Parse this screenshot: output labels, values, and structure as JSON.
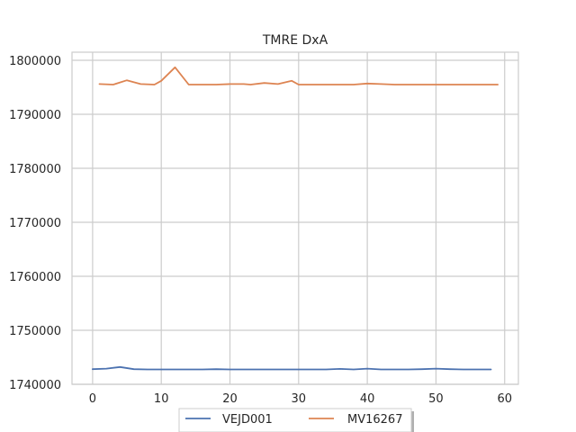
{
  "chart_data": {
    "type": "line",
    "title": "TMRE DxA",
    "xlabel": "",
    "ylabel": "",
    "xlim": [
      -3,
      62
    ],
    "ylim": [
      1740000,
      1801500
    ],
    "xticks": [
      "0",
      "10",
      "20",
      "30",
      "40",
      "50",
      "60"
    ],
    "yticks": [
      "1740000",
      "1750000",
      "1760000",
      "1770000",
      "1780000",
      "1790000",
      "1800000"
    ],
    "grid": true,
    "legend_position": "bottom-center",
    "series": [
      {
        "name": "VEJD001",
        "color": "#4c72b0",
        "x": [
          0,
          2,
          4,
          6,
          8,
          10,
          12,
          14,
          16,
          18,
          20,
          22,
          24,
          26,
          28,
          30,
          32,
          34,
          36,
          38,
          40,
          42,
          44,
          46,
          48,
          50,
          52,
          54,
          56,
          58
        ],
        "y": [
          1742800,
          1742900,
          1743200,
          1742800,
          1742750,
          1742750,
          1742750,
          1742750,
          1742750,
          1742800,
          1742750,
          1742750,
          1742750,
          1742750,
          1742750,
          1742750,
          1742750,
          1742750,
          1742850,
          1742750,
          1742900,
          1742750,
          1742750,
          1742750,
          1742800,
          1742900,
          1742800,
          1742750,
          1742750,
          1742750
        ]
      },
      {
        "name": "MV16267",
        "color": "#dd8452",
        "x": [
          1,
          3,
          5,
          7,
          9,
          10,
          12,
          14,
          16,
          18,
          20,
          22,
          23,
          25,
          27,
          29,
          30,
          32,
          34,
          36,
          38,
          40,
          42,
          44,
          46,
          48,
          50,
          52,
          54,
          56,
          59
        ],
        "y": [
          1795600,
          1795500,
          1796300,
          1795600,
          1795500,
          1796200,
          1798700,
          1795500,
          1795500,
          1795500,
          1795600,
          1795600,
          1795500,
          1795800,
          1795600,
          1796200,
          1795500,
          1795500,
          1795500,
          1795500,
          1795500,
          1795700,
          1795600,
          1795500,
          1795500,
          1795500,
          1795500,
          1795500,
          1795500,
          1795500,
          1795500
        ]
      }
    ]
  }
}
